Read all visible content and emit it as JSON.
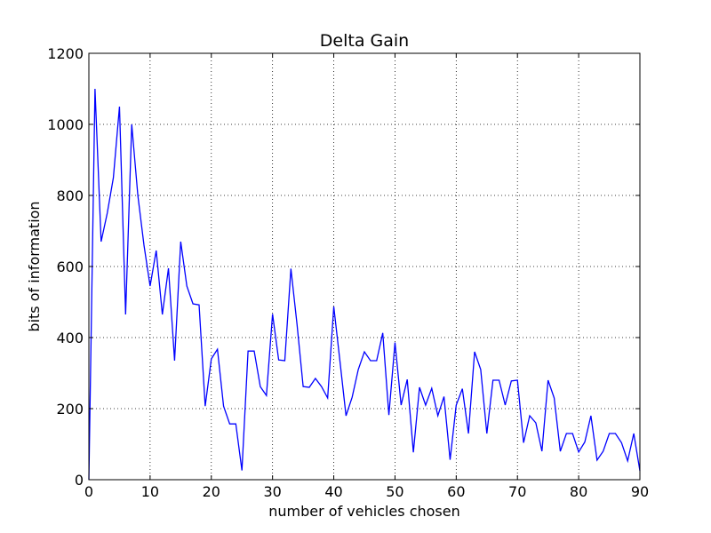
{
  "chart_data": {
    "type": "line",
    "title": "Delta Gain",
    "xlabel": "number of vehicles chosen",
    "ylabel": "bits of information",
    "xlim": [
      0,
      90
    ],
    "ylim": [
      0,
      1200
    ],
    "xticks": [
      "0",
      "10",
      "20",
      "30",
      "40",
      "50",
      "60",
      "70",
      "80",
      "90"
    ],
    "yticks": [
      "0",
      "200",
      "400",
      "600",
      "800",
      "1000",
      "1200"
    ],
    "grid": true,
    "line_color": "#0000ff",
    "series": [
      {
        "x": [
          0,
          1,
          2,
          3,
          4,
          5,
          6,
          7,
          8,
          9,
          10,
          11,
          12,
          13,
          14,
          15,
          16,
          17,
          18,
          19,
          20,
          21,
          22,
          23,
          24,
          25,
          26,
          27,
          28,
          29,
          30,
          31,
          32,
          33,
          34,
          35,
          36,
          37,
          38,
          39,
          40,
          41,
          42,
          43,
          44,
          45,
          46,
          47,
          48,
          49,
          50,
          51,
          52,
          53,
          54,
          55,
          56,
          57,
          58,
          59,
          60,
          61,
          62,
          63,
          64,
          65,
          66,
          67,
          68,
          69,
          70,
          71,
          72,
          73,
          74,
          75,
          76,
          77,
          78,
          79,
          80,
          81,
          82,
          83,
          84,
          85,
          86,
          87,
          88,
          89,
          90
        ],
        "values": [
          0,
          1100,
          670,
          750,
          850,
          1050,
          465,
          1000,
          800,
          660,
          545,
          645,
          465,
          595,
          335,
          670,
          545,
          495,
          492,
          207,
          340,
          367,
          207,
          157,
          157,
          26,
          362,
          362,
          262,
          237,
          466,
          337,
          335,
          594,
          437,
          262,
          260,
          285,
          262,
          230,
          487,
          335,
          180,
          232,
          310,
          360,
          335,
          335,
          413,
          182,
          386,
          210,
          282,
          77,
          260,
          210,
          257,
          180,
          234,
          56,
          210,
          256,
          130,
          360,
          310,
          130,
          280,
          280,
          210,
          278,
          280,
          104,
          180,
          160,
          80,
          280,
          230,
          80,
          130,
          130,
          78,
          106,
          180,
          55,
          80,
          130,
          130,
          104,
          53,
          130,
          25
        ]
      }
    ]
  }
}
